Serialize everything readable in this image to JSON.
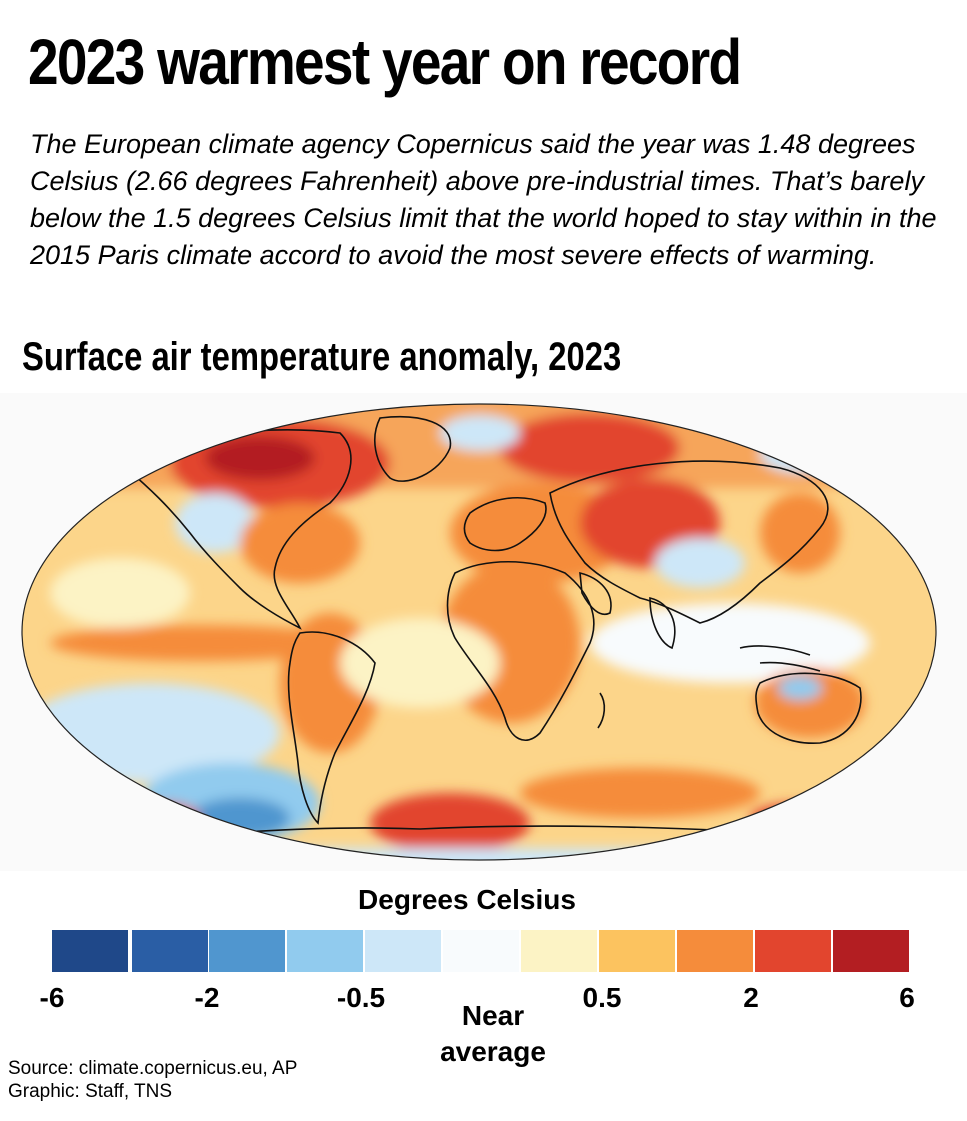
{
  "headline": "2023 warmest year on record",
  "subhead": "The European climate agency Copernicus said the year was 1.48 degrees Celsius (2.66 degrees Fahrenheit) above pre-industrial times. That’s barely below the 1.5 degrees Celsius limit that the world hoped to stay within in the 2015 Paris climate accord to avoid the most severe effects of warming.",
  "map": {
    "title": "Surface air temperature anomaly, 2023"
  },
  "legend": {
    "title": "Degrees Celsius",
    "colors": [
      "#1f4889",
      "#2a5ea5",
      "#5096cf",
      "#91cbee",
      "#cde7f8",
      "#f8fbfd",
      "#fcf3c5",
      "#fcc35f",
      "#f58c3b",
      "#e2452e",
      "#b31e22"
    ],
    "ticks": [
      "-6",
      "-2",
      "-0.5",
      "0.5",
      "2",
      "6"
    ],
    "near_average_line1": "Near",
    "near_average_line2": "average"
  },
  "credits": {
    "source": "Source: climate.copernicus.eu, AP",
    "graphic": "Graphic: Staff, TNS"
  }
}
